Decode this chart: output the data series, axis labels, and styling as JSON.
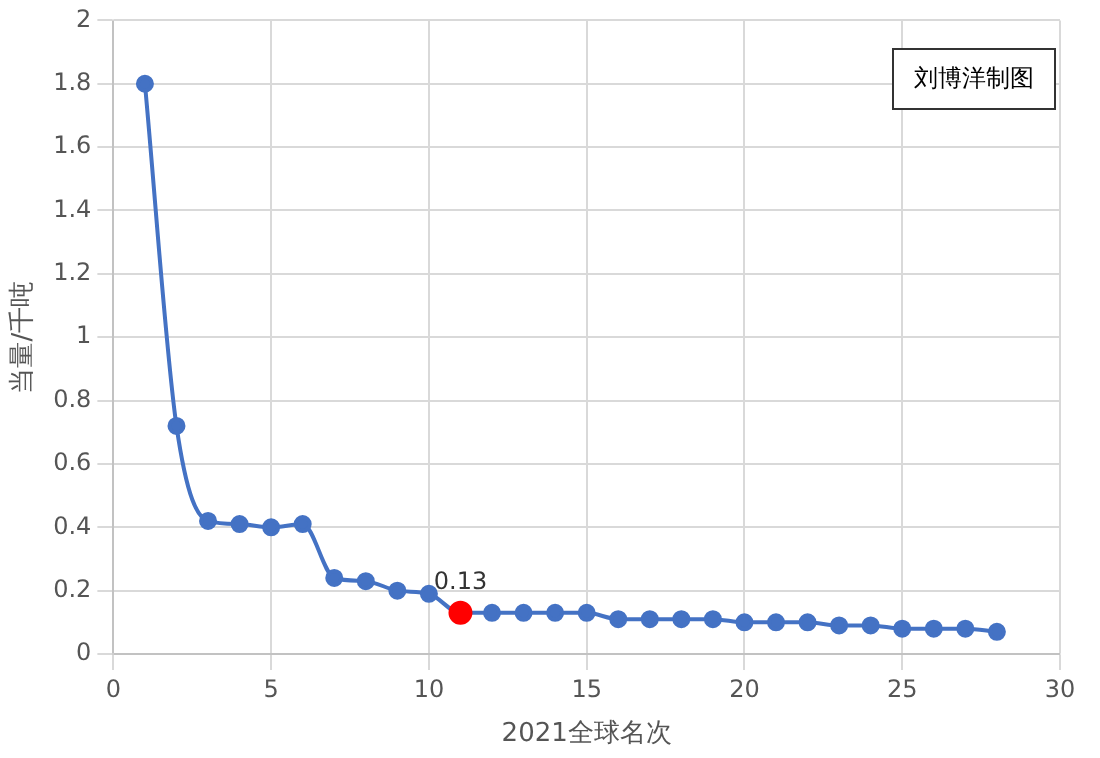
{
  "chart_data": {
    "type": "line",
    "xlabel": "2021全球名次",
    "ylabel": "当量/千吨",
    "x": [
      1,
      2,
      3,
      4,
      5,
      6,
      7,
      8,
      9,
      10,
      11,
      12,
      13,
      14,
      15,
      16,
      17,
      18,
      19,
      20,
      21,
      22,
      23,
      24,
      25,
      26,
      27,
      28
    ],
    "values": [
      1.8,
      0.72,
      0.42,
      0.41,
      0.4,
      0.41,
      0.24,
      0.23,
      0.2,
      0.19,
      0.13,
      0.13,
      0.13,
      0.13,
      0.13,
      0.11,
      0.11,
      0.11,
      0.11,
      0.1,
      0.1,
      0.1,
      0.09,
      0.09,
      0.08,
      0.08,
      0.08,
      0.07
    ],
    "color": "#4472c4",
    "colors": [
      "#4472c4",
      "#4472c4",
      "#4472c4",
      "#4472c4",
      "#4472c4",
      "#4472c4",
      "#4472c4",
      "#4472c4",
      "#4472c4",
      "#4472c4",
      "#ff0000",
      "#4472c4",
      "#4472c4",
      "#4472c4",
      "#4472c4",
      "#4472c4",
      "#4472c4",
      "#4472c4",
      "#4472c4",
      "#4472c4",
      "#4472c4",
      "#4472c4",
      "#4472c4",
      "#4472c4",
      "#4472c4",
      "#4472c4",
      "#4472c4",
      "#4472c4"
    ],
    "value_labels": [
      null,
      null,
      null,
      null,
      null,
      null,
      null,
      null,
      null,
      null,
      "0.13",
      null,
      null,
      null,
      null,
      null,
      null,
      null,
      null,
      null,
      null,
      null,
      null,
      null,
      null,
      null,
      null,
      null
    ],
    "xlim": [
      0,
      30
    ],
    "xticks": [
      0,
      5,
      10,
      15,
      20,
      25,
      30
    ],
    "ylim": [
      0,
      2
    ],
    "yticks": [
      0,
      0.2,
      0.4,
      0.6,
      0.8,
      1,
      1.2,
      1.4,
      1.6,
      1.8,
      2
    ],
    "grid": true,
    "marker": "circle",
    "line_style": "solid",
    "annotations": [
      "刘博洋制图"
    ]
  }
}
